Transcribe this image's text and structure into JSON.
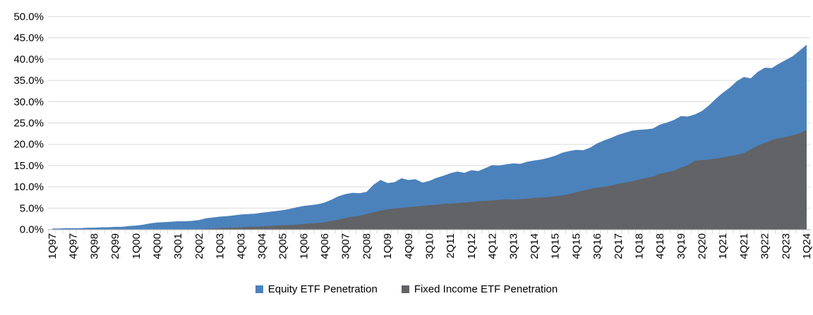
{
  "chart_data": {
    "type": "area",
    "overlay": true,
    "grid": "horizontal",
    "legend_position": "bottom",
    "x_tick_every": 3,
    "x_tick_labels": [
      "1Q97",
      "4Q97",
      "3Q98",
      "2Q99",
      "1Q00",
      "4Q00",
      "3Q01",
      "2Q02",
      "1Q03",
      "4Q03",
      "3Q04",
      "2Q05",
      "1Q06",
      "4Q06",
      "3Q07",
      "2Q08",
      "1Q09",
      "4Q09",
      "3Q10",
      "2Q11",
      "1Q12",
      "4Q12",
      "3Q13",
      "2Q14",
      "1Q15",
      "4Q15",
      "3Q16",
      "2Q17",
      "1Q18",
      "4Q18",
      "3Q19",
      "2Q20",
      "1Q21",
      "4Q21",
      "3Q22",
      "2Q23",
      "1Q24"
    ],
    "y_axis": {
      "min": 0,
      "max": 50,
      "step": 5,
      "tick_labels": [
        "0.0%",
        "5.0%",
        "10.0%",
        "15.0%",
        "20.0%",
        "25.0%",
        "30.0%",
        "35.0%",
        "40.0%",
        "45.0%",
        "50.0%"
      ]
    },
    "series": [
      {
        "name": "Equity ETF Penetration",
        "color": "#4B82BC",
        "values": [
          0.2,
          0.2,
          0.3,
          0.3,
          0.3,
          0.4,
          0.4,
          0.5,
          0.5,
          0.6,
          0.6,
          0.8,
          0.9,
          1.1,
          1.4,
          1.6,
          1.7,
          1.8,
          1.9,
          1.9,
          2.0,
          2.2,
          2.6,
          2.8,
          3.0,
          3.1,
          3.3,
          3.5,
          3.6,
          3.7,
          3.9,
          4.1,
          4.3,
          4.5,
          4.8,
          5.2,
          5.5,
          5.7,
          5.9,
          6.3,
          7.0,
          7.8,
          8.3,
          8.6,
          8.5,
          8.8,
          10.5,
          11.6,
          10.9,
          11.1,
          12.0,
          11.6,
          11.8,
          11.0,
          11.4,
          12.1,
          12.6,
          13.2,
          13.6,
          13.3,
          13.9,
          13.7,
          14.4,
          15.1,
          15.0,
          15.3,
          15.5,
          15.4,
          15.9,
          16.2,
          16.4,
          16.8,
          17.3,
          18.0,
          18.4,
          18.7,
          18.6,
          19.2,
          20.2,
          20.9,
          21.5,
          22.2,
          22.7,
          23.2,
          23.4,
          23.5,
          23.7,
          24.6,
          25.1,
          25.7,
          26.6,
          26.5,
          27.0,
          27.8,
          29.1,
          30.7,
          32.1,
          33.3,
          34.8,
          35.8,
          35.5,
          37.0,
          38.0,
          37.9,
          38.9,
          39.8,
          40.7,
          42.0,
          43.4
        ]
      },
      {
        "name": "Fixed Income ETF Penetration",
        "color": "#616367",
        "values": [
          0,
          0,
          0,
          0,
          0,
          0,
          0,
          0,
          0,
          0,
          0,
          0,
          0,
          0,
          0,
          0,
          0,
          0,
          0,
          0,
          0,
          0,
          0.1,
          0.2,
          0.3,
          0.4,
          0.4,
          0.5,
          0.6,
          0.6,
          0.7,
          0.8,
          0.9,
          1.0,
          1.0,
          1.1,
          1.3,
          1.4,
          1.5,
          1.7,
          2.0,
          2.3,
          2.7,
          3.0,
          3.2,
          3.6,
          4.0,
          4.4,
          4.7,
          4.9,
          5.1,
          5.2,
          5.4,
          5.5,
          5.7,
          5.8,
          6.0,
          6.1,
          6.2,
          6.3,
          6.4,
          6.6,
          6.7,
          6.8,
          6.9,
          7.1,
          7.0,
          7.1,
          7.2,
          7.4,
          7.5,
          7.6,
          7.8,
          8.0,
          8.3,
          8.7,
          9.1,
          9.5,
          9.8,
          10.0,
          10.3,
          10.7,
          11.0,
          11.3,
          11.7,
          12.1,
          12.4,
          13.1,
          13.4,
          13.8,
          14.5,
          15.1,
          16.1,
          16.3,
          16.4,
          16.6,
          16.9,
          17.2,
          17.5,
          17.9,
          18.8,
          19.7,
          20.3,
          21.0,
          21.4,
          21.7,
          22.1,
          22.6,
          23.4
        ]
      }
    ],
    "colors": {
      "gridline": "#D9D9D9",
      "axis_line": "#BFBFBF",
      "text": "#000000",
      "background": "#FFFFFF"
    }
  }
}
